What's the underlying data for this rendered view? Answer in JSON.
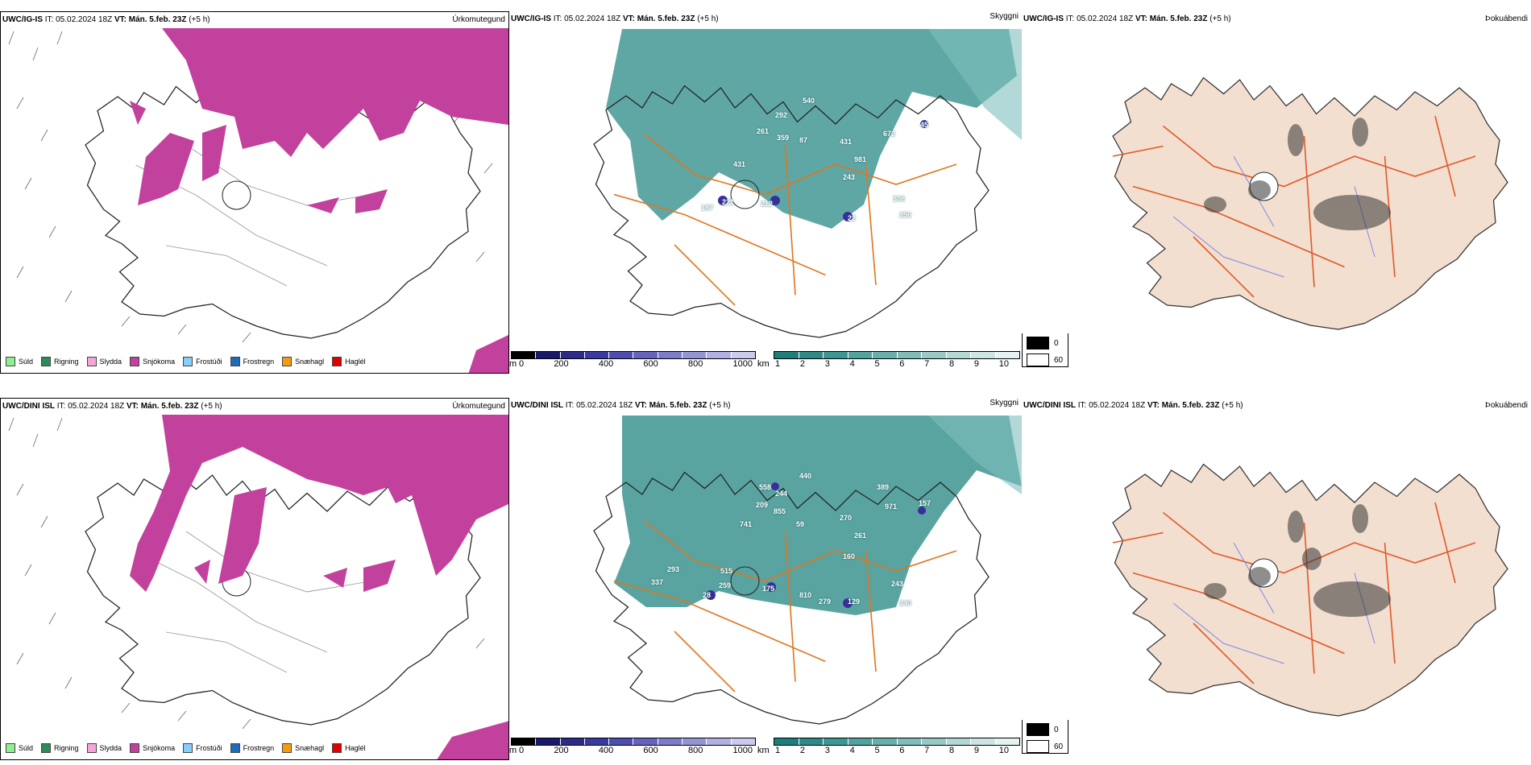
{
  "rows": [
    {
      "model": "UWC/IG-IS",
      "it_label": "IT:",
      "it_value": "05.02.2024 18Z",
      "vt_label": "VT:",
      "vt_value": "Mán. 5.feb. 23Z",
      "lead": "(+5 h)",
      "precip_title": "Úrkomutegund",
      "cloud_title": "Skyggni",
      "fog_title": "Þokuábendi",
      "visibility_numbers": [
        "292",
        "261",
        "359",
        "87",
        "540",
        "431",
        "981",
        "672",
        "243",
        "431",
        "187",
        "221",
        "212",
        "22",
        "308",
        "256",
        "45"
      ]
    },
    {
      "model": "UWC/DINI ISL",
      "it_label": "IT:",
      "it_value": "05.02.2024 18Z",
      "vt_label": "VT:",
      "vt_value": "Mán. 5.feb. 23Z",
      "lead": "(+5 h)",
      "precip_title": "Úrkomutegund",
      "cloud_title": "Skyggni",
      "fog_title": "Þokuábendi",
      "visibility_numbers": [
        "558",
        "244",
        "209",
        "855",
        "440",
        "389",
        "971",
        "157",
        "741",
        "59",
        "270",
        "261",
        "293",
        "515",
        "160",
        "337",
        "28",
        "259",
        "175",
        "810",
        "279",
        "129",
        "243",
        "340"
      ]
    }
  ],
  "precip_legend": [
    {
      "label": "Súld",
      "color": "#90ee90"
    },
    {
      "label": "Rigning",
      "color": "#2e8b57"
    },
    {
      "label": "Slydda",
      "color": "#f4a6d7"
    },
    {
      "label": "Snjókoma",
      "color": "#c2419c"
    },
    {
      "label": "Frostúði",
      "color": "#87cefa"
    },
    {
      "label": "Frostregn",
      "color": "#1e6bb8"
    },
    {
      "label": "Snæhagl",
      "color": "#f39c12"
    },
    {
      "label": "Haglél",
      "color": "#e00000"
    }
  ],
  "height_bar": {
    "unit": "m",
    "ticks": [
      "0",
      "200",
      "400",
      "600",
      "800",
      "1000"
    ]
  },
  "vis_bar": {
    "unit": "km",
    "ticks": [
      "1",
      "2",
      "3",
      "4",
      "5",
      "6",
      "7",
      "8",
      "9",
      "10"
    ]
  },
  "fog_legend": [
    "0",
    "60"
  ],
  "colors": {
    "snow": "#c2419c",
    "teal": "#2a8a87",
    "roads": "#e0761e",
    "land_tan": "#f3dfcf"
  }
}
